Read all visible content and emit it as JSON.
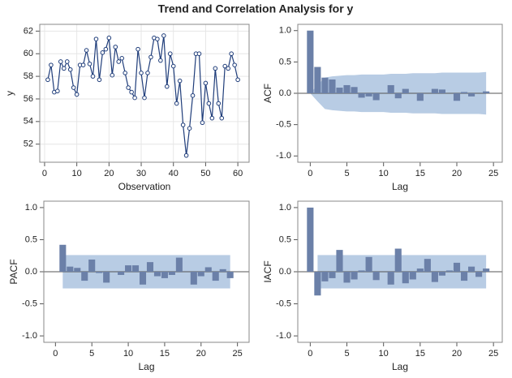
{
  "title": "Trend and Correlation Analysis for y",
  "chart_data": [
    {
      "type": "line",
      "xlabel": "Observation",
      "ylabel": "y",
      "color": "#1f3d7a",
      "grid": true,
      "x": [
        1,
        2,
        3,
        4,
        5,
        6,
        7,
        8,
        9,
        10,
        11,
        12,
        13,
        14,
        15,
        16,
        17,
        18,
        19,
        20,
        21,
        22,
        23,
        24,
        25,
        26,
        27,
        28,
        29,
        30,
        31,
        32,
        33,
        34,
        35,
        36,
        37,
        38,
        39,
        40,
        41,
        42,
        43,
        44,
        45,
        46,
        47,
        48,
        49,
        50,
        51,
        52,
        53,
        54,
        55,
        56,
        57,
        58,
        59,
        60
      ],
      "values": [
        57.7,
        59.0,
        56.6,
        56.7,
        59.3,
        58.7,
        59.3,
        58.6,
        57.0,
        56.4,
        59.0,
        59.0,
        60.3,
        59.1,
        58.0,
        61.3,
        57.7,
        60.1,
        60.4,
        61.4,
        58.1,
        60.6,
        59.3,
        59.6,
        58.3,
        57.0,
        56.6,
        56.1,
        60.4,
        58.3,
        56.1,
        58.3,
        59.7,
        61.4,
        61.3,
        59.4,
        61.6,
        57.1,
        60.0,
        58.9,
        55.6,
        57.6,
        53.7,
        51.0,
        53.4,
        56.3,
        60.0,
        60.0,
        53.9,
        57.4,
        55.6,
        54.3,
        58.7,
        55.6,
        54.3,
        58.9,
        58.7,
        60.0,
        59.0,
        57.7
      ],
      "xlim": [
        -1.5,
        63.5
      ],
      "xticks": [
        0,
        10,
        20,
        30,
        40,
        50,
        60
      ],
      "ylim": [
        50.4,
        62.6
      ],
      "yticks": [
        52,
        54,
        56,
        58,
        60,
        62
      ]
    },
    {
      "type": "bar",
      "xlabel": "Lag",
      "ylabel": "ACF",
      "color": "#6b80a8",
      "band_color": "#b8cce4",
      "zero_line": true,
      "x": [
        0,
        1,
        2,
        3,
        4,
        5,
        6,
        7,
        8,
        9,
        10,
        11,
        12,
        13,
        14,
        15,
        16,
        17,
        18,
        19,
        20,
        21,
        22,
        23,
        24
      ],
      "values": [
        1.0,
        0.42,
        0.25,
        0.22,
        0.09,
        0.13,
        0.1,
        -0.07,
        -0.05,
        -0.11,
        0.0,
        0.13,
        -0.08,
        0.07,
        0.0,
        -0.12,
        0.0,
        0.07,
        0.06,
        0.0,
        -0.12,
        0.02,
        -0.05,
        0.0,
        0.03
      ],
      "band_upper": [
        0,
        0.13,
        0.25,
        0.27,
        0.28,
        0.29,
        0.29,
        0.3,
        0.3,
        0.3,
        0.3,
        0.31,
        0.31,
        0.31,
        0.32,
        0.32,
        0.32,
        0.32,
        0.33,
        0.33,
        0.33,
        0.33,
        0.33,
        0.33,
        0.34
      ],
      "band_lower": [
        0,
        -0.13,
        -0.25,
        -0.27,
        -0.28,
        -0.29,
        -0.29,
        -0.3,
        -0.3,
        -0.3,
        -0.3,
        -0.31,
        -0.31,
        -0.31,
        -0.32,
        -0.32,
        -0.32,
        -0.32,
        -0.33,
        -0.33,
        -0.33,
        -0.33,
        -0.33,
        -0.33,
        -0.34
      ],
      "xlim": [
        -1.7,
        26.2
      ],
      "xticks": [
        0,
        5,
        10,
        15,
        20,
        25
      ],
      "ylim": [
        -1.1,
        1.1
      ],
      "yticks": [
        {
          "value": -1,
          "label": "-1.0"
        },
        {
          "value": -0.5,
          "label": "-0.5"
        },
        {
          "value": 0,
          "label": "0.0"
        },
        {
          "value": 0.5,
          "label": "0.5"
        },
        {
          "value": 1,
          "label": "1.0"
        }
      ]
    },
    {
      "type": "bar",
      "xlabel": "Lag",
      "ylabel": "PACF",
      "color": "#6b80a8",
      "band_color": "#b8cce4",
      "zero_line": true,
      "x": [
        1,
        2,
        3,
        4,
        5,
        6,
        7,
        8,
        9,
        10,
        11,
        12,
        13,
        14,
        15,
        16,
        17,
        18,
        19,
        20,
        21,
        22,
        23,
        24
      ],
      "values": [
        0.42,
        0.08,
        0.06,
        -0.14,
        0.19,
        -0.02,
        -0.17,
        0.0,
        -0.05,
        0.1,
        0.1,
        -0.2,
        0.15,
        -0.07,
        -0.1,
        -0.05,
        0.22,
        0.0,
        -0.2,
        -0.07,
        0.07,
        -0.14,
        0.04,
        -0.1
      ],
      "band_x": [
        1,
        24
      ],
      "band_lim": [
        -0.26,
        0.26
      ],
      "xlim": [
        -1.6,
        26.6
      ],
      "xticks": [
        0,
        5,
        10,
        15,
        20,
        25
      ],
      "ylim": [
        -1.1,
        1.1
      ],
      "yticks": [
        {
          "value": -1,
          "label": "-1.0"
        },
        {
          "value": -0.5,
          "label": "-0.5"
        },
        {
          "value": 0,
          "label": "0.0"
        },
        {
          "value": 0.5,
          "label": "0.5"
        },
        {
          "value": 1,
          "label": "1.0"
        }
      ]
    },
    {
      "type": "bar",
      "xlabel": "Lag",
      "ylabel": "IACF",
      "color": "#6b80a8",
      "band_color": "#b8cce4",
      "zero_line": true,
      "x": [
        0,
        1,
        2,
        3,
        4,
        5,
        6,
        7,
        8,
        9,
        10,
        11,
        12,
        13,
        14,
        15,
        16,
        17,
        18,
        19,
        20,
        21,
        22,
        23,
        24
      ],
      "values": [
        1.0,
        -0.37,
        -0.15,
        -0.1,
        0.34,
        -0.17,
        -0.12,
        0.02,
        0.23,
        -0.13,
        0.0,
        -0.2,
        0.36,
        -0.18,
        -0.12,
        0.05,
        0.2,
        -0.16,
        -0.06,
        0.02,
        0.14,
        -0.14,
        0.08,
        -0.08,
        0.05
      ],
      "band_x": [
        1,
        24
      ],
      "band_lim": [
        -0.26,
        0.26
      ],
      "xlim": [
        -1.7,
        26.2
      ],
      "xticks": [
        0,
        5,
        10,
        15,
        20,
        25
      ],
      "ylim": [
        -1.1,
        1.1
      ],
      "yticks": [
        {
          "value": -1,
          "label": "-1.0"
        },
        {
          "value": -0.5,
          "label": "-0.5"
        },
        {
          "value": 0,
          "label": "0.0"
        },
        {
          "value": 0.5,
          "label": "0.5"
        },
        {
          "value": 1,
          "label": "1.0"
        }
      ]
    }
  ]
}
